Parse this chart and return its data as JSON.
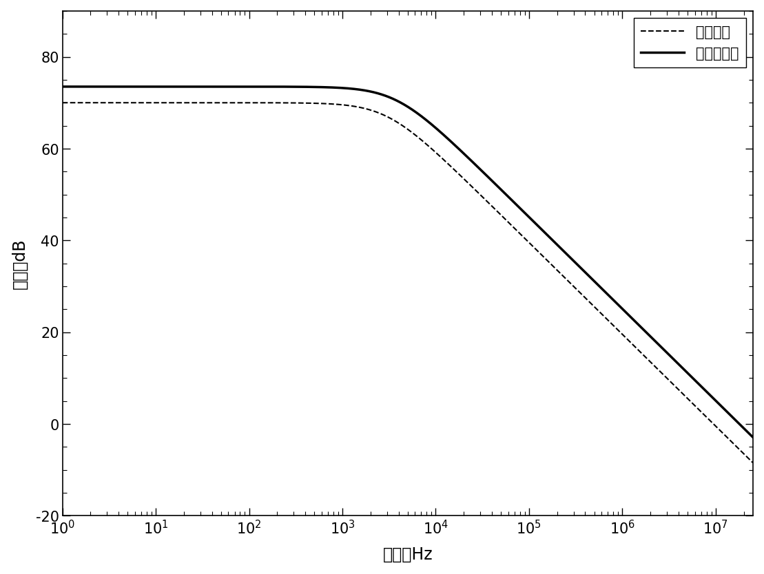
{
  "ylabel": "增益，dB",
  "xlabel": "频率，Hz",
  "ylim": [
    -20,
    90
  ],
  "xlim_log_min": 0,
  "xlim_log_max": 7.4,
  "legend_traditional": "传统运放",
  "legend_invention": "本发明运放",
  "traditional_dc_gain_db": 70.0,
  "invention_dc_gain_db": 73.5,
  "traditional_pole_hz": 3000,
  "invention_pole_hz": 3800,
  "yticks": [
    -20,
    0,
    20,
    40,
    60,
    80
  ],
  "xtick_powers": [
    0,
    1,
    2,
    3,
    4,
    5,
    6,
    7
  ],
  "background_color": "#ffffff",
  "line_color": "#000000",
  "trad_linewidth": 1.5,
  "inv_linewidth": 2.5
}
